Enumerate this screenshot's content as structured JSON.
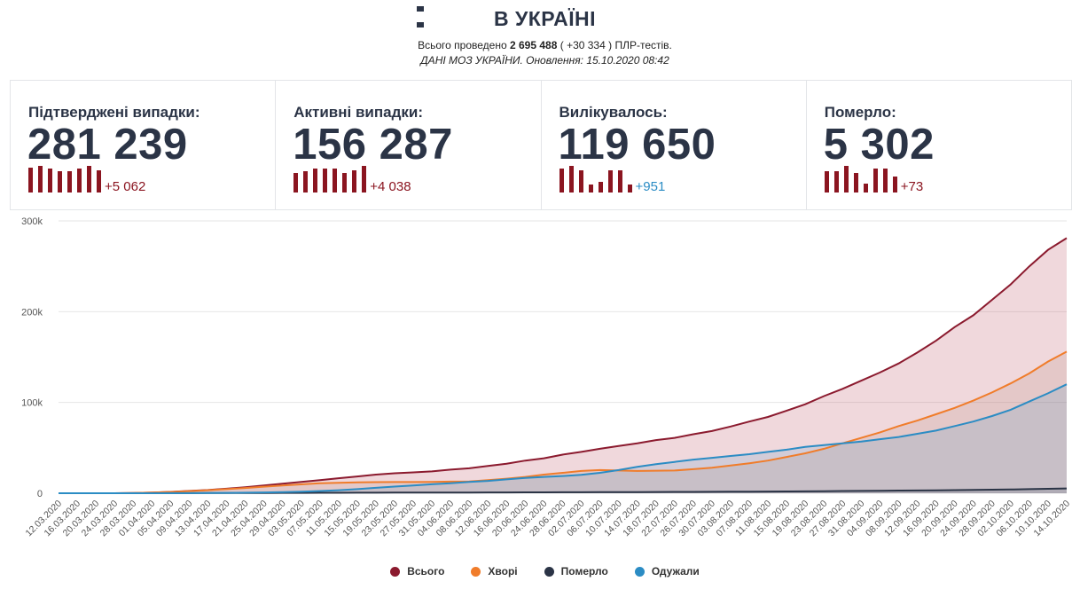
{
  "header": {
    "title": "В УКРАЇНІ",
    "tests_prefix": "Всього проведено",
    "tests_total": "2 695 488",
    "tests_delta": "( +30 334 )",
    "tests_suffix": "ПЛР-тестів.",
    "source": "ДАНІ МОЗ УКРАЇНИ. Оновлення: 15.10.2020 08:42"
  },
  "cards": [
    {
      "label": "Підтверджені випадки:",
      "value": "281 239",
      "delta": "+5 062",
      "delta_color": "#8b1520",
      "spark": [
        0.95,
        1.0,
        0.9,
        0.8,
        0.8,
        0.9,
        1.0,
        0.85
      ]
    },
    {
      "label": "Активні випадки:",
      "value": "156 287",
      "delta": "+4 038",
      "delta_color": "#8b1520",
      "spark": [
        0.75,
        0.8,
        0.9,
        0.9,
        0.9,
        0.75,
        0.85,
        1.0
      ]
    },
    {
      "label": "Вилікувалось:",
      "value": "119 650",
      "delta": "+951",
      "delta_color": "#2b8cc4",
      "spark": [
        0.9,
        1.0,
        0.85,
        0.3,
        0.4,
        0.85,
        0.85,
        0.3
      ]
    },
    {
      "label": "Померло:",
      "value": "5 302",
      "delta": "+73",
      "delta_color": "#8b1520",
      "spark": [
        0.8,
        0.8,
        1.0,
        0.75,
        0.35,
        0.9,
        0.9,
        0.6
      ]
    }
  ],
  "chart_data": {
    "type": "area",
    "x": [
      "12.03.2020",
      "16.03.2020",
      "20.03.2020",
      "24.03.2020",
      "28.03.2020",
      "01.04.2020",
      "05.04.2020",
      "09.04.2020",
      "13.04.2020",
      "17.04.2020",
      "21.04.2020",
      "25.04.2020",
      "29.04.2020",
      "03.05.2020",
      "07.05.2020",
      "11.05.2020",
      "15.05.2020",
      "19.05.2020",
      "23.05.2020",
      "27.05.2020",
      "31.05.2020",
      "04.06.2020",
      "08.06.2020",
      "12.06.2020",
      "16.06.2020",
      "20.06.2020",
      "24.06.2020",
      "28.06.2020",
      "02.07.2020",
      "06.07.2020",
      "10.07.2020",
      "14.07.2020",
      "18.07.2020",
      "22.07.2020",
      "26.07.2020",
      "30.07.2020",
      "03.08.2020",
      "07.08.2020",
      "11.08.2020",
      "15.08.2020",
      "19.08.2020",
      "23.08.2020",
      "27.08.2020",
      "31.08.2020",
      "04.09.2020",
      "08.09.2020",
      "12.09.2020",
      "16.09.2020",
      "20.09.2020",
      "24.09.2020",
      "28.09.2020",
      "02.10.2020",
      "06.10.2020",
      "10.10.2020",
      "14.10.2020"
    ],
    "series": [
      {
        "name": "Всього",
        "color": "#8b1a2e",
        "fill": "rgba(170,40,60,0.18)",
        "values": [
          0,
          0,
          0,
          0,
          0.3,
          0.8,
          1.5,
          2.5,
          3.5,
          5,
          6.5,
          8.5,
          10.5,
          12.5,
          14.5,
          16.5,
          18.5,
          20.5,
          22,
          23,
          24,
          26,
          27.5,
          30,
          32.5,
          36,
          38.5,
          42.5,
          45.5,
          49,
          52,
          55,
          58.5,
          61,
          65,
          68.5,
          73.5,
          79,
          84,
          91,
          98,
          107,
          115,
          124,
          133,
          143,
          155,
          168,
          183,
          196,
          213,
          230,
          250,
          268,
          281
        ]
      },
      {
        "name": "Хворі",
        "color": "#f07c2a",
        "fill": "rgba(190,150,140,0.25)",
        "values": [
          0,
          0,
          0,
          0,
          0.3,
          0.8,
          1.4,
          2.3,
          3.3,
          4.5,
          5.8,
          7.2,
          8.5,
          9.8,
          10.9,
          11.5,
          12,
          12.2,
          12.3,
          12.3,
          12.4,
          12.8,
          13,
          14.5,
          16,
          18,
          20.5,
          22.5,
          24.5,
          25.5,
          25,
          24.5,
          24.8,
          25,
          26.5,
          28,
          30.5,
          33,
          36,
          40,
          44,
          49,
          55,
          61,
          67,
          74,
          80,
          87,
          94,
          102,
          111,
          121,
          132,
          145,
          156
        ]
      },
      {
        "name": "Померло",
        "color": "#2b3446",
        "fill": "rgba(43,52,70,0.15)",
        "values": [
          0,
          0,
          0,
          0,
          0,
          0,
          0.05,
          0.1,
          0.15,
          0.2,
          0.25,
          0.3,
          0.35,
          0.4,
          0.45,
          0.5,
          0.55,
          0.6,
          0.65,
          0.7,
          0.75,
          0.8,
          0.82,
          0.85,
          0.9,
          0.95,
          1.0,
          1.05,
          1.1,
          1.15,
          1.2,
          1.3,
          1.4,
          1.45,
          1.5,
          1.6,
          1.7,
          1.8,
          1.9,
          2.0,
          2.1,
          2.25,
          2.4,
          2.55,
          2.7,
          2.9,
          3.05,
          3.25,
          3.45,
          3.65,
          3.9,
          4.15,
          4.5,
          4.9,
          5.3
        ]
      },
      {
        "name": "Одужали",
        "color": "#2b8cc4",
        "fill": "rgba(43,140,196,0.15)",
        "values": [
          0,
          0,
          0,
          0,
          0,
          0,
          0,
          0.1,
          0.2,
          0.4,
          0.6,
          0.9,
          1.3,
          1.8,
          2.4,
          3.3,
          4.5,
          6,
          7.3,
          8.6,
          9.9,
          11,
          12.5,
          13.6,
          15.2,
          16.8,
          18,
          19,
          20.2,
          22.5,
          25.5,
          29,
          32,
          34.5,
          37,
          39,
          41,
          43,
          45.5,
          48,
          51,
          53,
          55,
          57,
          59.5,
          62,
          65.5,
          69,
          74,
          79,
          85,
          92,
          101,
          110,
          120
        ]
      }
    ],
    "y_ticks": [
      "0",
      "100k",
      "200k",
      "300k"
    ],
    "ylim": [
      0,
      300
    ],
    "y_unit": "thousands",
    "legend": [
      "Всього",
      "Хворі",
      "Померло",
      "Одужали"
    ],
    "legend_position": "bottom"
  }
}
